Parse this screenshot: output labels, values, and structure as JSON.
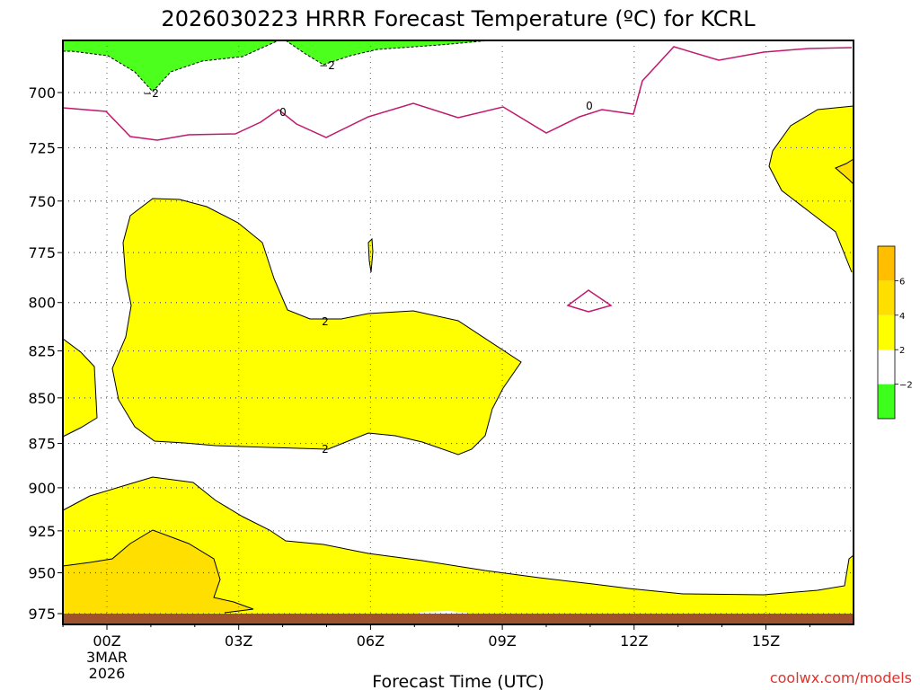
{
  "chart_data": {
    "type": "contour",
    "title": "2026030223 HRRR Forecast Temperature (ºC) for KCRL",
    "xlabel": "Forecast Time (UTC)",
    "ylabel": "",
    "y_scale": "log",
    "x_ticks": [
      {
        "label": "00Z",
        "sub1": "3MAR",
        "sub2": "2026"
      },
      {
        "label": "03Z",
        "sub1": "",
        "sub2": ""
      },
      {
        "label": "06Z",
        "sub1": "",
        "sub2": ""
      },
      {
        "label": "09Z",
        "sub1": "",
        "sub2": ""
      },
      {
        "label": "12Z",
        "sub1": "",
        "sub2": ""
      },
      {
        "label": "15Z",
        "sub1": "",
        "sub2": ""
      }
    ],
    "y_ticks": [
      "700",
      "725",
      "750",
      "775",
      "800",
      "825",
      "850",
      "875",
      "900",
      "925",
      "950",
      "975"
    ],
    "grid": true,
    "colorbar": {
      "tick_labels": [
        "6",
        "4",
        "2",
        "−2"
      ],
      "colors": [
        "#ffbf00",
        "#ffdf00",
        "#ffff00",
        "#ffffff",
        "#3eff1c"
      ]
    },
    "contour_labels": [
      "−2",
      "−2",
      "0",
      "0",
      "2",
      "2"
    ],
    "shading": {
      "below_minus2": "#4cff1c",
      "2_to_4": "#ffff00",
      "4_to_6": "#ffdf00",
      "6_to_8": "#ffbf00",
      "surface": "#a0522d",
      "freezing_line": "#c0186e"
    }
  },
  "credit": "coolwx.com/models"
}
